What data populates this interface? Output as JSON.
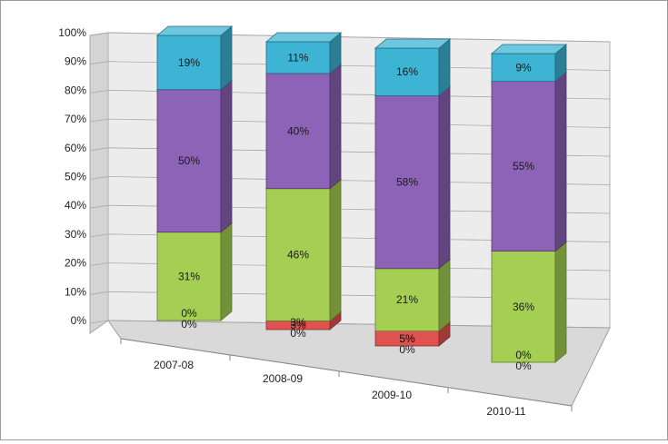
{
  "chart_data": {
    "type": "bar",
    "stacked": true,
    "normalized_percent": true,
    "three_d": true,
    "categories": [
      "2007-08",
      "2008-09",
      "2009-10",
      "2010-11"
    ],
    "ylim": [
      0,
      100
    ],
    "y_ticks": [
      "0%",
      "10%",
      "20%",
      "30%",
      "40%",
      "50%",
      "60%",
      "70%",
      "80%",
      "90%",
      "100%"
    ],
    "grid": true,
    "legend": "none",
    "series": [
      {
        "values": [
          0,
          3,
          5,
          0
        ],
        "labels": [
          "0%",
          "3%",
          "5%",
          "0%"
        ],
        "label_offsets": [
          0,
          0,
          0,
          0
        ],
        "color": "#e0524f"
      },
      {
        "values": [
          31,
          46,
          21,
          36
        ],
        "labels": [
          "31%",
          "46%",
          "21%",
          "36%"
        ],
        "color": "#a4cf52"
      },
      {
        "values": [
          50,
          40,
          58,
          55
        ],
        "labels": [
          "50%",
          "40%",
          "58%",
          "55%"
        ],
        "color": "#8c63b6"
      },
      {
        "values": [
          19,
          11,
          16,
          9
        ],
        "labels": [
          "19%",
          "11%",
          "16%",
          "9%"
        ],
        "color": "#3db4d4"
      }
    ],
    "zero_labels": [
      "0%",
      "0%",
      "0%",
      "0%"
    ]
  }
}
